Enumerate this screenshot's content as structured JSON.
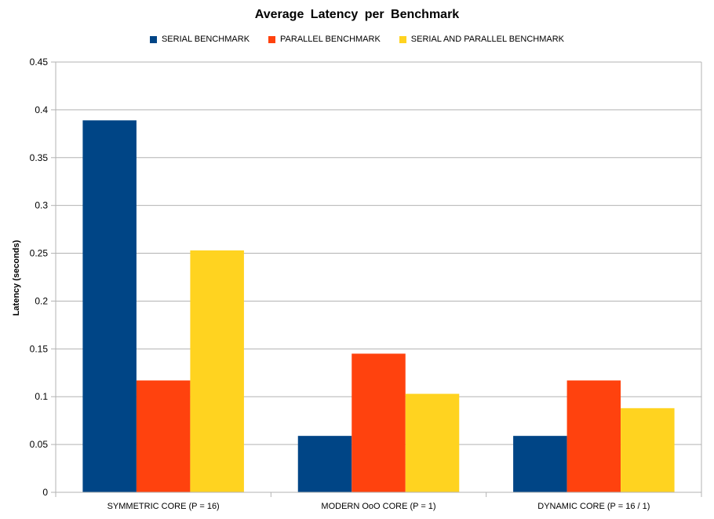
{
  "chart_data": {
    "type": "bar",
    "title": "Average  Latency  per Benchmark",
    "ylabel": "Latency (seconds)",
    "xlabel": "",
    "ylim": [
      0,
      0.45
    ],
    "yticks": [
      "0",
      "0.05",
      "0.1",
      "0.15",
      "0.2",
      "0.25",
      "0.3",
      "0.35",
      "0.4",
      "0.45"
    ],
    "grid": true,
    "legend_position": "top",
    "categories": [
      "SYMMETRIC CORE (P = 16)",
      "MODERN OoO CORE (P = 1)",
      "DYNAMIC CORE (P = 16 / 1)"
    ],
    "series": [
      {
        "name": "SERIAL BENCHMARK",
        "color": "#004586",
        "values": [
          0.389,
          0.059,
          0.059
        ]
      },
      {
        "name": "PARALLEL BENCHMARK",
        "color": "#ff420e",
        "values": [
          0.117,
          0.145,
          0.117
        ]
      },
      {
        "name": "SERIAL AND PARALLEL BENCHMARK",
        "color": "#ffd320",
        "values": [
          0.253,
          0.103,
          0.088
        ]
      }
    ]
  }
}
